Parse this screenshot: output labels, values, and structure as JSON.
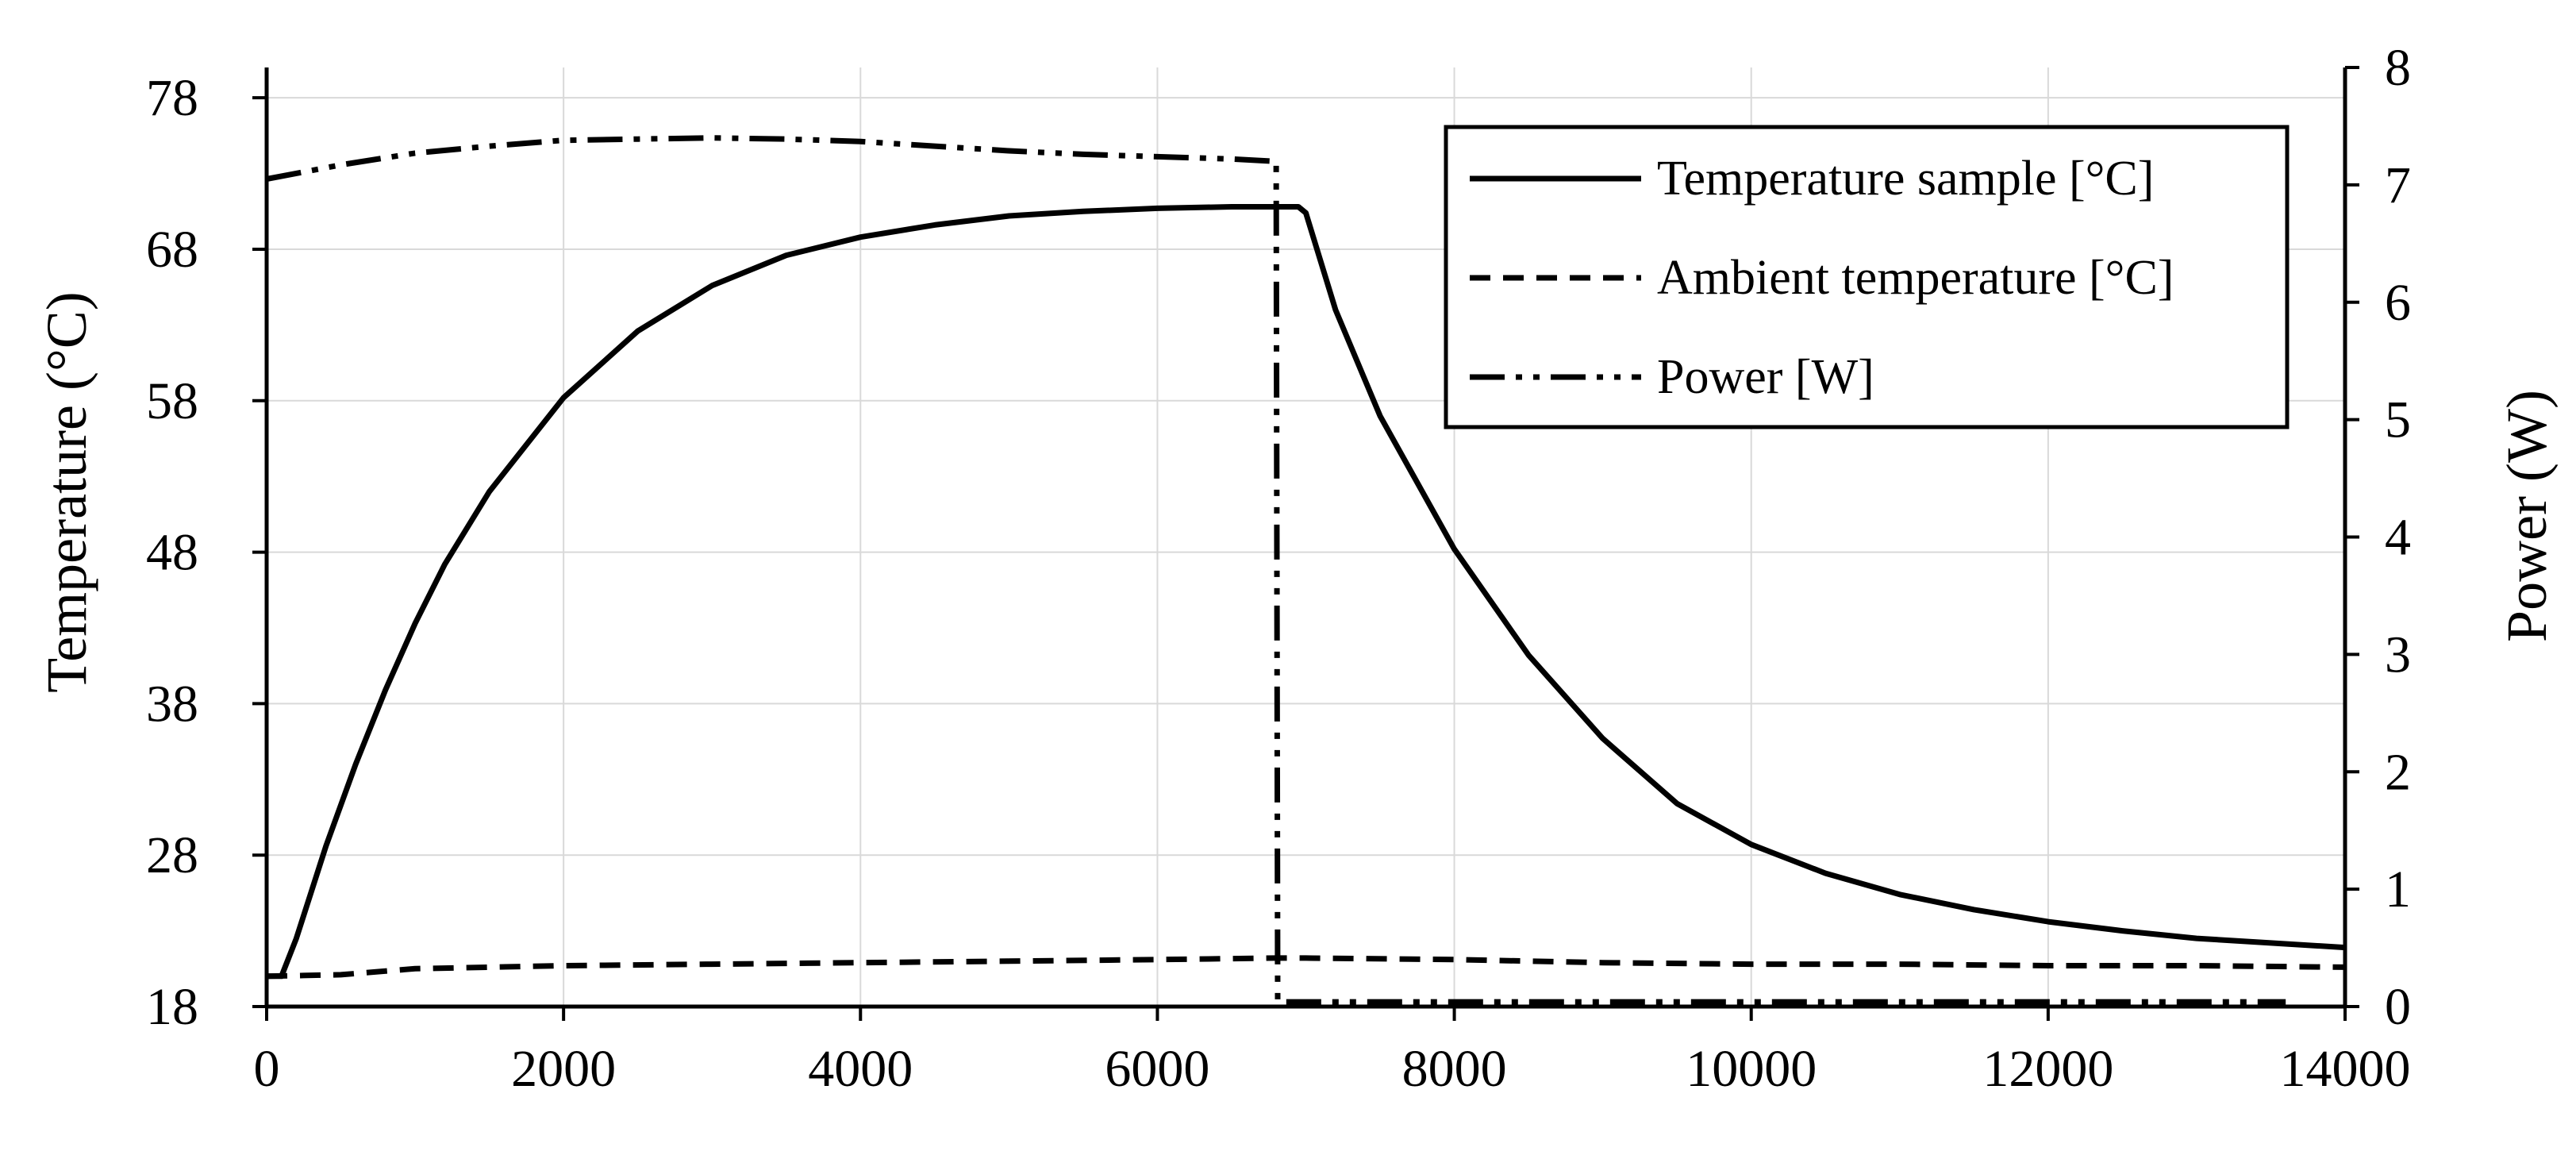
{
  "chart_data": {
    "type": "line",
    "title": "",
    "xlabel": "",
    "ylabel_left": "Temperature (°C)",
    "ylabel_right": "Power (W)",
    "xlim": [
      0,
      14000
    ],
    "ylim_left": [
      18,
      80
    ],
    "ylim_right": [
      0,
      8
    ],
    "x_ticks": [
      0,
      2000,
      4000,
      6000,
      8000,
      10000,
      12000,
      14000
    ],
    "y_left_ticks": [
      18,
      28,
      38,
      48,
      58,
      68,
      78
    ],
    "y_right_ticks": [
      0,
      1,
      2,
      3,
      4,
      5,
      6,
      7,
      8
    ],
    "grid": true,
    "legend_position": "top-right",
    "series": [
      {
        "name": "Temperature sample [°C]",
        "axis": "left",
        "style": "solid",
        "x": [
          0,
          100,
          200,
          400,
          600,
          800,
          1000,
          1200,
          1500,
          2000,
          2500,
          3000,
          3500,
          4000,
          4500,
          5000,
          5500,
          6000,
          6500,
          6950,
          7000,
          7200,
          7500,
          8000,
          8500,
          9000,
          9500,
          10000,
          10500,
          11000,
          11500,
          12000,
          12500,
          13000,
          13500,
          14000
        ],
        "values": [
          20.0,
          20.0,
          22.5,
          28.6,
          34.0,
          38.9,
          43.3,
          47.2,
          52.0,
          58.2,
          62.6,
          65.6,
          67.6,
          68.8,
          69.6,
          70.2,
          70.5,
          70.7,
          70.8,
          70.8,
          70.4,
          64.0,
          57.0,
          48.2,
          41.2,
          35.7,
          31.4,
          28.7,
          26.8,
          25.4,
          24.4,
          23.6,
          23.0,
          22.5,
          22.2,
          21.9
        ]
      },
      {
        "name": "Ambient temperature [°C]",
        "axis": "left",
        "style": "dashed",
        "x": [
          0,
          500,
          1000,
          1500,
          2000,
          3000,
          4000,
          5000,
          6000,
          6800,
          7000,
          8000,
          9000,
          10000,
          11000,
          12000,
          13000,
          14000
        ],
        "values": [
          20.0,
          20.1,
          20.5,
          20.6,
          20.7,
          20.8,
          20.9,
          21.0,
          21.1,
          21.2,
          21.2,
          21.1,
          20.9,
          20.8,
          20.8,
          20.7,
          20.7,
          20.6
        ]
      },
      {
        "name": "Power [W]",
        "axis": "right",
        "style": "dash-dot-dot",
        "x": [
          0,
          500,
          1000,
          1500,
          2000,
          2500,
          3000,
          3500,
          4000,
          4500,
          5000,
          5500,
          6000,
          6500,
          6800,
          6810,
          7000,
          8000,
          9000,
          10000,
          11000,
          12000,
          13000,
          13600
        ],
        "values": [
          7.05,
          7.17,
          7.27,
          7.33,
          7.38,
          7.39,
          7.4,
          7.39,
          7.37,
          7.33,
          7.29,
          7.26,
          7.24,
          7.22,
          7.2,
          0.04,
          0.04,
          0.04,
          0.04,
          0.04,
          0.04,
          0.04,
          0.04,
          0.04
        ]
      }
    ]
  }
}
